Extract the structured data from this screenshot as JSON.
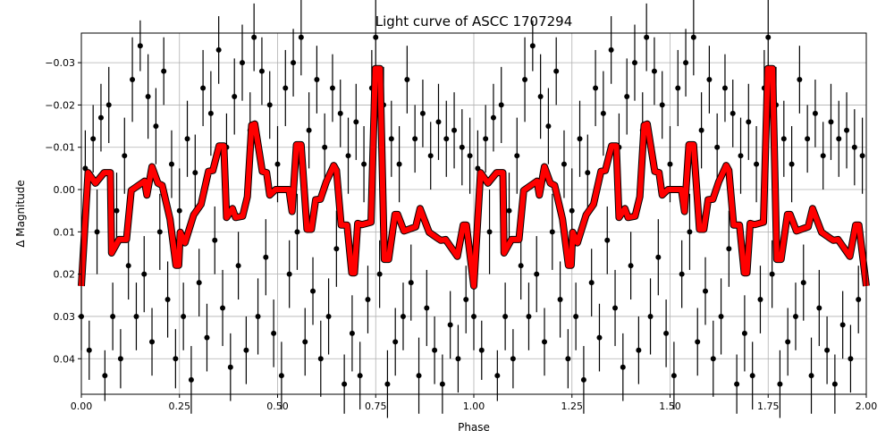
{
  "chart_data": {
    "type": "scatter",
    "title": "Light curve of ASCC 1707294",
    "xlabel": "Phase",
    "ylabel": "Δ Magnitude",
    "xlim": [
      0,
      2
    ],
    "ylim": [
      0.0484,
      -0.037
    ],
    "y_inverted": true,
    "grid": true,
    "x_ticks": [
      "0.00",
      "0.25",
      "0.50",
      "0.75",
      "1.00",
      "1.25",
      "1.50",
      "1.75",
      "2.00"
    ],
    "x_tick_values": [
      0,
      0.25,
      0.5,
      0.75,
      1,
      1.25,
      1.5,
      1.75,
      2
    ],
    "y_ticks": [
      "−0.03",
      "−0.02",
      "−0.01",
      "0.00",
      "0.01",
      "0.02",
      "0.03",
      "0.04"
    ],
    "y_tick_values": [
      -0.03,
      -0.02,
      -0.01,
      0,
      0.01,
      0.02,
      0.03,
      0.04
    ],
    "colors": {
      "data": "#000000",
      "model": "#ff0000",
      "grid": "#b0b0b0"
    },
    "fold_repeat": 2,
    "data_points": [
      [
        0.0,
        0.03,
        0.008
      ],
      [
        0.01,
        -0.005,
        0.009
      ],
      [
        0.02,
        0.038,
        0.007
      ],
      [
        0.03,
        -0.012,
        0.008
      ],
      [
        0.04,
        0.01,
        0.01
      ],
      [
        0.05,
        -0.017,
        0.008
      ],
      [
        0.06,
        0.044,
        0.006
      ],
      [
        0.07,
        -0.02,
        0.009
      ],
      [
        0.08,
        0.03,
        0.008
      ],
      [
        0.09,
        0.005,
        0.009
      ],
      [
        0.1,
        0.04,
        0.007
      ],
      [
        0.11,
        -0.008,
        0.009
      ],
      [
        0.12,
        0.018,
        0.008
      ],
      [
        0.13,
        -0.026,
        0.01
      ],
      [
        0.14,
        0.03,
        0.008
      ],
      [
        0.15,
        -0.034,
        0.006
      ],
      [
        0.16,
        0.02,
        0.009
      ],
      [
        0.17,
        -0.022,
        0.01
      ],
      [
        0.18,
        0.036,
        0.008
      ],
      [
        0.19,
        -0.015,
        0.009
      ],
      [
        0.2,
        0.01,
        0.009
      ],
      [
        0.21,
        -0.028,
        0.008
      ],
      [
        0.22,
        0.026,
        0.009
      ],
      [
        0.23,
        -0.006,
        0.008
      ],
      [
        0.24,
        0.04,
        0.007
      ],
      [
        0.25,
        0.005,
        0.01
      ],
      [
        0.26,
        0.03,
        0.008
      ],
      [
        0.27,
        -0.012,
        0.009
      ],
      [
        0.28,
        0.045,
        0.008
      ],
      [
        0.29,
        -0.004,
        0.009
      ],
      [
        0.3,
        0.022,
        0.008
      ],
      [
        0.31,
        -0.024,
        0.009
      ],
      [
        0.32,
        0.035,
        0.008
      ],
      [
        0.33,
        -0.018,
        0.01
      ],
      [
        0.34,
        0.012,
        0.008
      ],
      [
        0.35,
        -0.033,
        0.008
      ],
      [
        0.36,
        0.028,
        0.009
      ],
      [
        0.37,
        -0.01,
        0.008
      ],
      [
        0.38,
        0.042,
        0.008
      ],
      [
        0.39,
        -0.022,
        0.009
      ],
      [
        0.4,
        0.018,
        0.008
      ],
      [
        0.41,
        -0.03,
        0.009
      ],
      [
        0.42,
        0.038,
        0.008
      ],
      [
        0.43,
        -0.014,
        0.009
      ],
      [
        0.44,
        -0.036,
        0.008
      ],
      [
        0.45,
        0.03,
        0.009
      ],
      [
        0.46,
        -0.028,
        0.008
      ],
      [
        0.47,
        0.016,
        0.009
      ],
      [
        0.48,
        -0.02,
        0.008
      ],
      [
        0.49,
        0.034,
        0.008
      ],
      [
        0.5,
        -0.006,
        0.009
      ],
      [
        0.51,
        0.044,
        0.008
      ],
      [
        0.52,
        -0.024,
        0.009
      ],
      [
        0.53,
        0.02,
        0.008
      ],
      [
        0.54,
        -0.03,
        0.008
      ],
      [
        0.55,
        0.01,
        0.009
      ],
      [
        0.56,
        -0.036,
        0.009
      ],
      [
        0.57,
        0.036,
        0.008
      ],
      [
        0.58,
        -0.014,
        0.009
      ],
      [
        0.59,
        0.024,
        0.008
      ],
      [
        0.6,
        -0.026,
        0.008
      ],
      [
        0.61,
        0.04,
        0.009
      ],
      [
        0.62,
        -0.01,
        0.008
      ],
      [
        0.63,
        0.03,
        0.009
      ],
      [
        0.64,
        -0.024,
        0.008
      ],
      [
        0.65,
        0.014,
        0.009
      ],
      [
        0.66,
        -0.018,
        0.008
      ],
      [
        0.67,
        0.046,
        0.007
      ],
      [
        0.68,
        -0.008,
        0.009
      ],
      [
        0.69,
        0.034,
        0.009
      ],
      [
        0.7,
        -0.016,
        0.009
      ],
      [
        0.71,
        0.044,
        0.008
      ],
      [
        0.72,
        -0.006,
        0.009
      ],
      [
        0.73,
        0.026,
        0.008
      ],
      [
        0.74,
        -0.024,
        0.009
      ],
      [
        0.75,
        -0.036,
        0.009
      ],
      [
        0.76,
        0.02,
        0.008
      ],
      [
        0.77,
        -0.02,
        0.009
      ],
      [
        0.78,
        0.046,
        0.008
      ],
      [
        0.79,
        -0.012,
        0.009
      ],
      [
        0.8,
        0.036,
        0.008
      ],
      [
        0.81,
        -0.006,
        0.009
      ],
      [
        0.82,
        0.03,
        0.008
      ],
      [
        0.83,
        -0.026,
        0.008
      ],
      [
        0.84,
        0.022,
        0.009
      ],
      [
        0.85,
        -0.012,
        0.008
      ],
      [
        0.86,
        0.044,
        0.009
      ],
      [
        0.87,
        -0.018,
        0.008
      ],
      [
        0.88,
        0.028,
        0.009
      ],
      [
        0.89,
        -0.008,
        0.008
      ],
      [
        0.9,
        0.038,
        0.008
      ],
      [
        0.91,
        -0.016,
        0.009
      ],
      [
        0.92,
        0.046,
        0.007
      ],
      [
        0.93,
        -0.012,
        0.009
      ],
      [
        0.94,
        0.032,
        0.008
      ],
      [
        0.95,
        -0.014,
        0.009
      ],
      [
        0.96,
        0.04,
        0.008
      ],
      [
        0.97,
        -0.01,
        0.009
      ],
      [
        0.98,
        0.026,
        0.008
      ],
      [
        0.99,
        -0.008,
        0.009
      ]
    ],
    "model_curve": [
      [
        0.0,
        0.0228
      ],
      [
        0.017,
        -0.004
      ],
      [
        0.036,
        -0.0015
      ],
      [
        0.058,
        -0.004
      ],
      [
        0.074,
        -0.004
      ],
      [
        0.077,
        0.015
      ],
      [
        0.096,
        0.0118
      ],
      [
        0.115,
        0.0118
      ],
      [
        0.127,
        0.0002
      ],
      [
        0.161,
        -0.002
      ],
      [
        0.167,
        0.0013
      ],
      [
        0.18,
        -0.0054
      ],
      [
        0.195,
        -0.0015
      ],
      [
        0.206,
        -0.001
      ],
      [
        0.226,
        0.007
      ],
      [
        0.241,
        0.0179
      ],
      [
        0.248,
        0.0179
      ],
      [
        0.252,
        0.0101
      ],
      [
        0.264,
        0.0126
      ],
      [
        0.286,
        0.006
      ],
      [
        0.305,
        0.0035
      ],
      [
        0.324,
        -0.0043
      ],
      [
        0.335,
        -0.0045
      ],
      [
        0.351,
        -0.0103
      ],
      [
        0.363,
        -0.0103
      ],
      [
        0.37,
        0.0066
      ],
      [
        0.385,
        0.0045
      ],
      [
        0.393,
        0.0066
      ],
      [
        0.411,
        0.0063
      ],
      [
        0.423,
        0.0017
      ],
      [
        0.434,
        -0.0152
      ],
      [
        0.442,
        -0.0155
      ],
      [
        0.461,
        -0.0043
      ],
      [
        0.472,
        -0.004
      ],
      [
        0.48,
        0.0013
      ],
      [
        0.495,
        0.0
      ],
      [
        0.529,
        0.0
      ],
      [
        0.537,
        0.0052
      ],
      [
        0.548,
        -0.0106
      ],
      [
        0.56,
        -0.0106
      ],
      [
        0.575,
        0.0094
      ],
      [
        0.586,
        0.0094
      ],
      [
        0.597,
        0.0024
      ],
      [
        0.609,
        0.0023
      ],
      [
        0.624,
        -0.0018
      ],
      [
        0.643,
        -0.0057
      ],
      [
        0.65,
        -0.0045
      ],
      [
        0.662,
        0.0084
      ],
      [
        0.677,
        0.0084
      ],
      [
        0.689,
        0.0197
      ],
      [
        0.696,
        0.0197
      ],
      [
        0.704,
        0.008
      ],
      [
        0.715,
        0.0083
      ],
      [
        0.738,
        0.0077
      ],
      [
        0.749,
        -0.0286
      ],
      [
        0.761,
        -0.0286
      ],
      [
        0.772,
        0.0165
      ],
      [
        0.783,
        0.0165
      ],
      [
        0.799,
        0.0059
      ],
      [
        0.806,
        0.0059
      ],
      [
        0.822,
        0.0098
      ],
      [
        0.852,
        0.0088
      ],
      [
        0.863,
        0.0045
      ],
      [
        0.886,
        0.0101
      ],
      [
        0.909,
        0.0116
      ],
      [
        0.916,
        0.012
      ],
      [
        0.928,
        0.0118
      ],
      [
        0.958,
        0.0158
      ],
      [
        0.973,
        0.0084
      ],
      [
        0.981,
        0.0084
      ],
      [
        1.0,
        0.0228
      ]
    ]
  }
}
